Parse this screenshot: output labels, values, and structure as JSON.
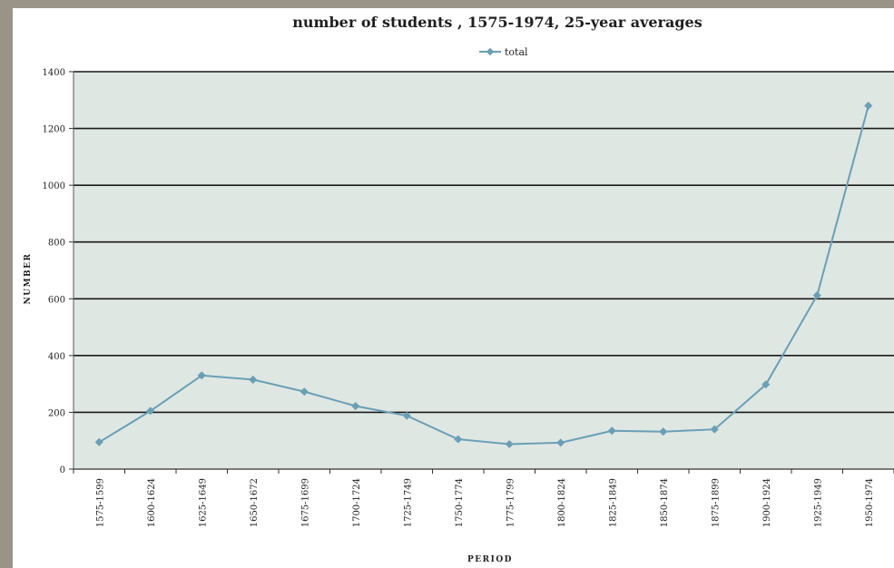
{
  "chart_data": {
    "type": "line",
    "title": "number of students , 1575-1974, 25-year averages",
    "xlabel": "PERIOD",
    "ylabel": "NUMBER",
    "categories": [
      "1575-1599",
      "1600-1624",
      "1625-1649",
      "1650-1672",
      "1675-1699",
      "1700-1724",
      "1725-1749",
      "1750-1774",
      "1775-1799",
      "1800-1824",
      "1825-1849",
      "1850-1874",
      "1875-1899",
      "1900-1924",
      "1925-1949",
      "1950-1974"
    ],
    "series": [
      {
        "name": "total",
        "values": [
          95,
          205,
          330,
          315,
          273,
          222,
          188,
          105,
          88,
          93,
          135,
          132,
          140,
          298,
          612,
          1280
        ]
      }
    ],
    "ylim": [
      0,
      1400
    ],
    "yticks": [
      0,
      200,
      400,
      600,
      800,
      1000,
      1200,
      1400
    ],
    "grid": true,
    "legend": "top-center",
    "colors": {
      "line": "#6a9fb5",
      "plot_bg": "#dfe7e3",
      "grid": "#1a1a1a"
    }
  }
}
